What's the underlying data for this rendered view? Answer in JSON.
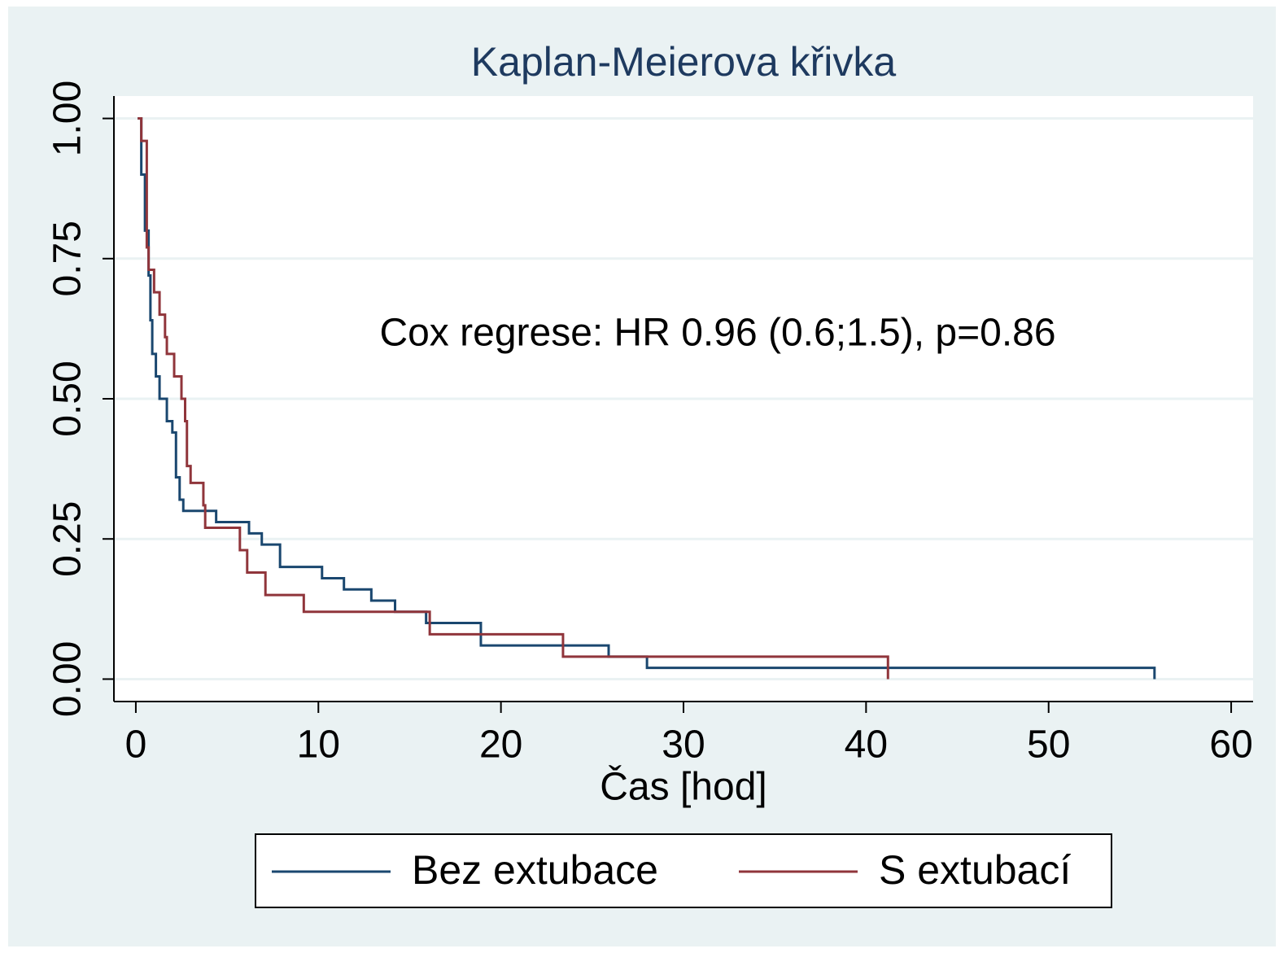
{
  "chart_data": {
    "type": "step",
    "title": "Kaplan-Meierova křivka",
    "annotation": "Cox regrese: HR 0.96 (0.6;1.5), p=0.86",
    "x_label": "Čas [hod]",
    "xlim": [
      -1.2,
      61.2
    ],
    "xticks": [
      0,
      10,
      20,
      30,
      40,
      50,
      60
    ],
    "ylim": [
      -0.04,
      1.04
    ],
    "yticks": [
      {
        "value": 0,
        "label": "0.00"
      },
      {
        "value": 0.25,
        "label": "0.25"
      },
      {
        "value": 0.5,
        "label": "0.50"
      },
      {
        "value": 0.75,
        "label": "0.75"
      },
      {
        "value": 1,
        "label": "1.00"
      }
    ],
    "grid": true,
    "series": [
      {
        "name": "Bez extubace",
        "color": "#1a476f",
        "x": [
          0.1,
          0.3,
          0.5,
          0.7,
          0.8,
          0.9,
          1.1,
          1.3,
          1.7,
          2.0,
          2.2,
          2.4,
          2.6,
          4.4,
          6.2,
          6.9,
          7.9,
          10.2,
          11.4,
          12.9,
          14.2,
          15.9,
          18.9,
          25.9,
          28,
          55.8
        ],
        "values": [
          1.0,
          0.9,
          0.8,
          0.72,
          0.64,
          0.58,
          0.54,
          0.5,
          0.46,
          0.44,
          0.36,
          0.32,
          0.3,
          0.28,
          0.26,
          0.24,
          0.2,
          0.18,
          0.16,
          0.14,
          0.12,
          0.1,
          0.06,
          0.04,
          0.02,
          0.0
        ]
      },
      {
        "name": "S extubací",
        "color": "#90353b",
        "x": [
          0.1,
          0.3,
          0.6,
          0.7,
          1.0,
          1.3,
          1.6,
          1.7,
          2.1,
          2.5,
          2.7,
          2.8,
          3.0,
          3.7,
          3.8,
          5.7,
          6.1,
          7.1,
          9.2,
          16.1,
          23.4,
          41.2
        ],
        "values": [
          1.0,
          0.96,
          0.77,
          0.73,
          0.69,
          0.65,
          0.61,
          0.58,
          0.54,
          0.5,
          0.46,
          0.38,
          0.35,
          0.31,
          0.27,
          0.23,
          0.19,
          0.15,
          0.12,
          0.08,
          0.04,
          0.0
        ]
      }
    ]
  }
}
